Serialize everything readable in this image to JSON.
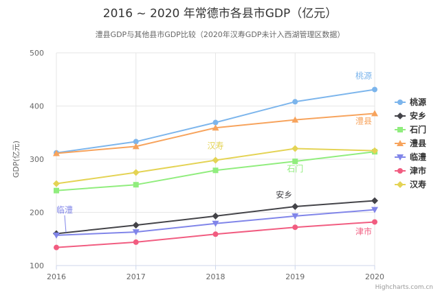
{
  "chart_data": {
    "type": "line",
    "title": "2016 ~ 2020 年常德市各县市GDP（亿元）",
    "subtitle": "澧县GDP与其他县市GDP比较（2020年汉寿GDP未计入西湖管理区数据）",
    "xlabel": "",
    "ylabel": "GDP(亿元)",
    "x": [
      "2016",
      "2017",
      "2018",
      "2019",
      "2020"
    ],
    "ylim": [
      100,
      500
    ],
    "yticks": [
      "100",
      "200",
      "300",
      "400",
      "500"
    ],
    "grid": true,
    "legend_position": "right",
    "series": [
      {
        "name": "桃源",
        "color": "#7cb5ec",
        "marker": "circle",
        "values": [
          312,
          333,
          369,
          408,
          431
        ]
      },
      {
        "name": "安乡",
        "color": "#434348",
        "marker": "diamond",
        "values": [
          160,
          176,
          193,
          211,
          222
        ]
      },
      {
        "name": "石门",
        "color": "#90ed7d",
        "marker": "square",
        "values": [
          241,
          252,
          279,
          296,
          314
        ]
      },
      {
        "name": "澧县",
        "color": "#f7a35c",
        "marker": "triangle",
        "values": [
          311,
          324,
          359,
          374,
          386
        ]
      },
      {
        "name": "临澧",
        "color": "#8085e9",
        "marker": "triangle-down",
        "values": [
          157,
          163,
          179,
          193,
          205
        ]
      },
      {
        "name": "津市",
        "color": "#f15c80",
        "marker": "circle",
        "values": [
          134,
          144,
          159,
          172,
          182
        ]
      },
      {
        "name": "汉寿",
        "color": "#e4d354",
        "marker": "diamond",
        "values": [
          254,
          275,
          298,
          320,
          316
        ]
      }
    ],
    "annotations": [
      {
        "text": "桃源",
        "series": "桃源",
        "color": "#7cb5ec"
      },
      {
        "text": "澧县",
        "series": "澧县",
        "color": "#f7a35c"
      },
      {
        "text": "汉寿",
        "series": "汉寿",
        "color": "#e4d354"
      },
      {
        "text": "石门",
        "series": "石门",
        "color": "#90ed7d"
      },
      {
        "text": "安乡",
        "series": "安乡",
        "color": "#434348"
      },
      {
        "text": "临澧",
        "series": "临澧",
        "color": "#8085e9"
      },
      {
        "text": "津市",
        "series": "津市",
        "color": "#f15c80"
      }
    ],
    "credits": "Highcharts.com.cn"
  }
}
